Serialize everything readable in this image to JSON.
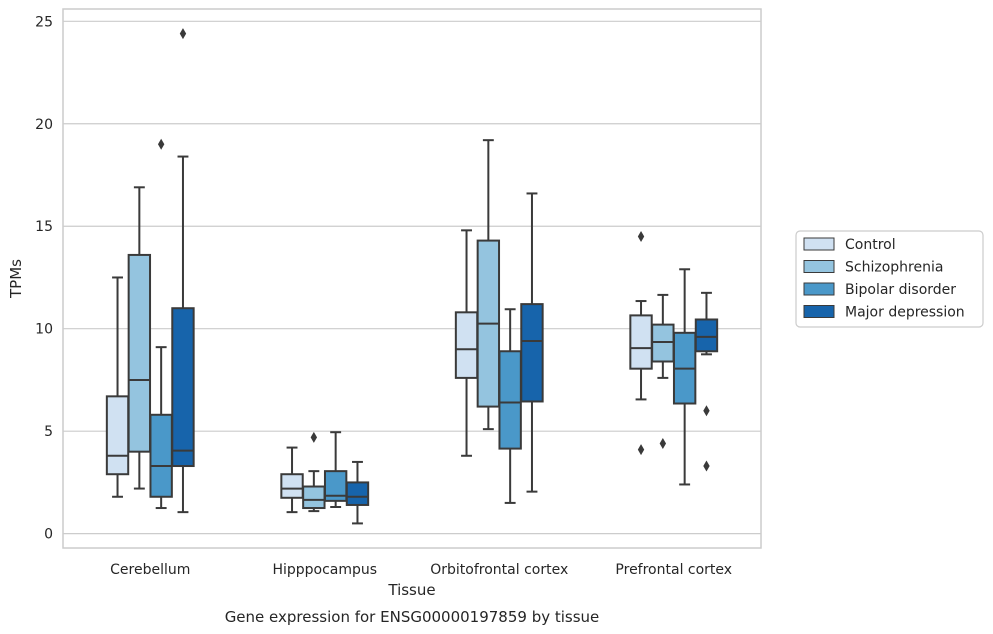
{
  "chart_data": {
    "type": "box",
    "xlabel": "Tissue",
    "ylabel": "TPMs",
    "caption": "Gene expression for ENSG00000197859 by tissue",
    "ylim": [
      -0.7,
      25.6
    ],
    "yticks": [
      0,
      5,
      10,
      15,
      20,
      25
    ],
    "grid": true,
    "legend_placement": "right",
    "categories": [
      "Cerebellum",
      "Hipppocampus",
      "Orbitofrontal cortex",
      "Prefrontal cortex"
    ],
    "series": [
      {
        "name": "Control",
        "color": "#d0e1f2",
        "boxes": [
          {
            "whislo": 1.8,
            "q1": 2.9,
            "med": 3.8,
            "q3": 6.7,
            "whishi": 12.5,
            "fliers": []
          },
          {
            "whislo": 1.05,
            "q1": 1.75,
            "med": 2.2,
            "q3": 2.9,
            "whishi": 4.2,
            "fliers": []
          },
          {
            "whislo": 3.8,
            "q1": 7.6,
            "med": 9.0,
            "q3": 10.8,
            "whishi": 14.8,
            "fliers": []
          },
          {
            "whislo": 6.55,
            "q1": 8.05,
            "med": 9.05,
            "q3": 10.65,
            "whishi": 11.35,
            "fliers": [
              14.5,
              4.1
            ]
          }
        ]
      },
      {
        "name": "Schizophrenia",
        "color": "#94c4df",
        "boxes": [
          {
            "whislo": 2.2,
            "q1": 4.0,
            "med": 7.5,
            "q3": 13.6,
            "whishi": 16.9,
            "fliers": []
          },
          {
            "whislo": 1.1,
            "q1": 1.25,
            "med": 1.65,
            "q3": 2.3,
            "whishi": 3.05,
            "fliers": [
              4.7
            ]
          },
          {
            "whislo": 5.1,
            "q1": 6.2,
            "med": 10.25,
            "q3": 14.3,
            "whishi": 19.2,
            "fliers": []
          },
          {
            "whislo": 7.6,
            "q1": 8.4,
            "med": 9.35,
            "q3": 10.2,
            "whishi": 11.65,
            "fliers": [
              4.4
            ]
          }
        ]
      },
      {
        "name": "Bipolar disorder",
        "color": "#4a98c9",
        "boxes": [
          {
            "whislo": 1.25,
            "q1": 1.8,
            "med": 3.3,
            "q3": 5.8,
            "whishi": 9.1,
            "fliers": [
              19.0
            ]
          },
          {
            "whislo": 1.3,
            "q1": 1.6,
            "med": 1.85,
            "q3": 3.05,
            "whishi": 4.95,
            "fliers": []
          },
          {
            "whislo": 1.5,
            "q1": 4.15,
            "med": 6.4,
            "q3": 8.9,
            "whishi": 10.95,
            "fliers": []
          },
          {
            "whislo": 2.4,
            "q1": 6.35,
            "med": 8.05,
            "q3": 9.8,
            "whishi": 12.9,
            "fliers": []
          }
        ]
      },
      {
        "name": "Major depression",
        "color": "#1764ab",
        "boxes": [
          {
            "whislo": 1.05,
            "q1": 3.3,
            "med": 4.05,
            "q3": 11.0,
            "whishi": 18.4,
            "fliers": [
              24.4
            ]
          },
          {
            "whislo": 0.5,
            "q1": 1.4,
            "med": 1.8,
            "q3": 2.5,
            "whishi": 3.5,
            "fliers": []
          },
          {
            "whislo": 2.05,
            "q1": 6.45,
            "med": 9.4,
            "q3": 11.2,
            "whishi": 16.6,
            "fliers": []
          },
          {
            "whislo": 8.75,
            "q1": 8.9,
            "med": 9.6,
            "q3": 10.45,
            "whishi": 11.75,
            "fliers": [
              6.0,
              3.3
            ]
          }
        ]
      }
    ]
  }
}
